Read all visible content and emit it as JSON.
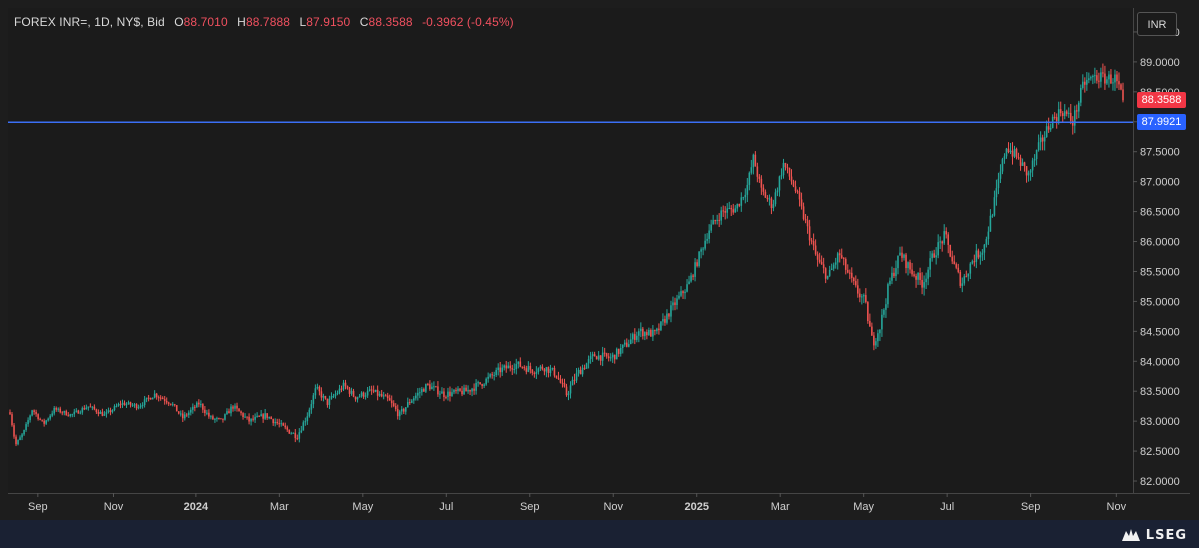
{
  "legend": {
    "symbol": "FOREX INR=, 1D, NY$, Bid",
    "open_label": "O",
    "open": "88.7010",
    "high_label": "H",
    "high": "88.7888",
    "low_label": "L",
    "low": "87.9150",
    "close_label": "C",
    "close": "88.3588",
    "change": "-0.3962",
    "change_pct": "(-0.45%)"
  },
  "currency_button": "INR",
  "last_price_badge": "88.3588",
  "hline_badge": "87.9921",
  "brand": "LSEG",
  "colors": {
    "up": "#26a69a",
    "down": "#ef5350",
    "hline": "#3b6ff5",
    "price_badge": "#f23645",
    "hline_badge": "#2962ff"
  },
  "chart_data": {
    "type": "candlestick",
    "instrument": "FOREX INR=",
    "interval": "1D",
    "y_axis_side": "right",
    "ylim": [
      81.8,
      89.9
    ],
    "y_ticks": [
      "82.0000",
      "82.5000",
      "83.0000",
      "83.5000",
      "84.0000",
      "84.5000",
      "85.0000",
      "85.5000",
      "86.0000",
      "86.5000",
      "87.0000",
      "87.5000",
      "88.0000",
      "88.5000",
      "89.0000",
      "89.5000"
    ],
    "x_ticks": [
      {
        "label": "Sep",
        "bold": false,
        "t": 0.025
      },
      {
        "label": "Nov",
        "bold": false,
        "t": 0.093
      },
      {
        "label": "2024",
        "bold": true,
        "t": 0.167
      },
      {
        "label": "Mar",
        "bold": false,
        "t": 0.242
      },
      {
        "label": "May",
        "bold": false,
        "t": 0.317
      },
      {
        "label": "Jul",
        "bold": false,
        "t": 0.392
      },
      {
        "label": "Sep",
        "bold": false,
        "t": 0.467
      },
      {
        "label": "Nov",
        "bold": false,
        "t": 0.542
      },
      {
        "label": "2025",
        "bold": true,
        "t": 0.617
      },
      {
        "label": "Mar",
        "bold": false,
        "t": 0.692
      },
      {
        "label": "May",
        "bold": false,
        "t": 0.767
      },
      {
        "label": "Jul",
        "bold": false,
        "t": 0.842
      },
      {
        "label": "Sep",
        "bold": false,
        "t": 0.917
      },
      {
        "label": "Nov",
        "bold": false,
        "t": 0.994
      }
    ],
    "horizontal_line": 87.9921,
    "last_close": 88.3588,
    "close_path": [
      [
        0.0,
        83.15
      ],
      [
        0.005,
        82.6
      ],
      [
        0.012,
        82.8
      ],
      [
        0.02,
        83.2
      ],
      [
        0.03,
        82.95
      ],
      [
        0.04,
        83.2
      ],
      [
        0.055,
        83.1
      ],
      [
        0.07,
        83.25
      ],
      [
        0.085,
        83.1
      ],
      [
        0.1,
        83.3
      ],
      [
        0.115,
        83.25
      ],
      [
        0.13,
        83.45
      ],
      [
        0.145,
        83.3
      ],
      [
        0.155,
        83.05
      ],
      [
        0.17,
        83.3
      ],
      [
        0.18,
        83.05
      ],
      [
        0.19,
        83.0
      ],
      [
        0.2,
        83.25
      ],
      [
        0.215,
        83.0
      ],
      [
        0.23,
        83.1
      ],
      [
        0.245,
        82.9
      ],
      [
        0.258,
        82.75
      ],
      [
        0.267,
        83.1
      ],
      [
        0.275,
        83.55
      ],
      [
        0.285,
        83.3
      ],
      [
        0.3,
        83.6
      ],
      [
        0.31,
        83.4
      ],
      [
        0.325,
        83.5
      ],
      [
        0.34,
        83.35
      ],
      [
        0.35,
        83.1
      ],
      [
        0.36,
        83.35
      ],
      [
        0.375,
        83.6
      ],
      [
        0.39,
        83.45
      ],
      [
        0.41,
        83.5
      ],
      [
        0.425,
        83.65
      ],
      [
        0.44,
        83.85
      ],
      [
        0.455,
        83.95
      ],
      [
        0.47,
        83.85
      ],
      [
        0.48,
        83.9
      ],
      [
        0.49,
        83.8
      ],
      [
        0.5,
        83.45
      ],
      [
        0.51,
        83.8
      ],
      [
        0.525,
        84.1
      ],
      [
        0.54,
        84.05
      ],
      [
        0.555,
        84.3
      ],
      [
        0.565,
        84.5
      ],
      [
        0.58,
        84.45
      ],
      [
        0.595,
        84.9
      ],
      [
        0.61,
        85.3
      ],
      [
        0.62,
        85.8
      ],
      [
        0.628,
        86.2
      ],
      [
        0.64,
        86.5
      ],
      [
        0.652,
        86.55
      ],
      [
        0.662,
        86.9
      ],
      [
        0.668,
        87.4
      ],
      [
        0.675,
        86.85
      ],
      [
        0.685,
        86.6
      ],
      [
        0.695,
        87.3
      ],
      [
        0.705,
        86.9
      ],
      [
        0.715,
        86.3
      ],
      [
        0.725,
        85.7
      ],
      [
        0.735,
        85.4
      ],
      [
        0.745,
        85.8
      ],
      [
        0.752,
        85.5
      ],
      [
        0.76,
        85.2
      ],
      [
        0.768,
        85.0
      ],
      [
        0.775,
        84.3
      ],
      [
        0.782,
        84.6
      ],
      [
        0.79,
        85.3
      ],
      [
        0.8,
        85.8
      ],
      [
        0.81,
        85.5
      ],
      [
        0.82,
        85.3
      ],
      [
        0.83,
        85.8
      ],
      [
        0.84,
        86.1
      ],
      [
        0.848,
        85.6
      ],
      [
        0.855,
        85.3
      ],
      [
        0.865,
        85.7
      ],
      [
        0.875,
        85.9
      ],
      [
        0.885,
        86.7
      ],
      [
        0.895,
        87.6
      ],
      [
        0.905,
        87.4
      ],
      [
        0.915,
        87.1
      ],
      [
        0.925,
        87.6
      ],
      [
        0.935,
        88.0
      ],
      [
        0.945,
        88.2
      ],
      [
        0.955,
        88.0
      ],
      [
        0.965,
        88.65
      ],
      [
        0.975,
        88.75
      ],
      [
        0.985,
        88.72
      ],
      [
        0.993,
        88.72
      ],
      [
        1.0,
        88.3588
      ]
    ]
  }
}
